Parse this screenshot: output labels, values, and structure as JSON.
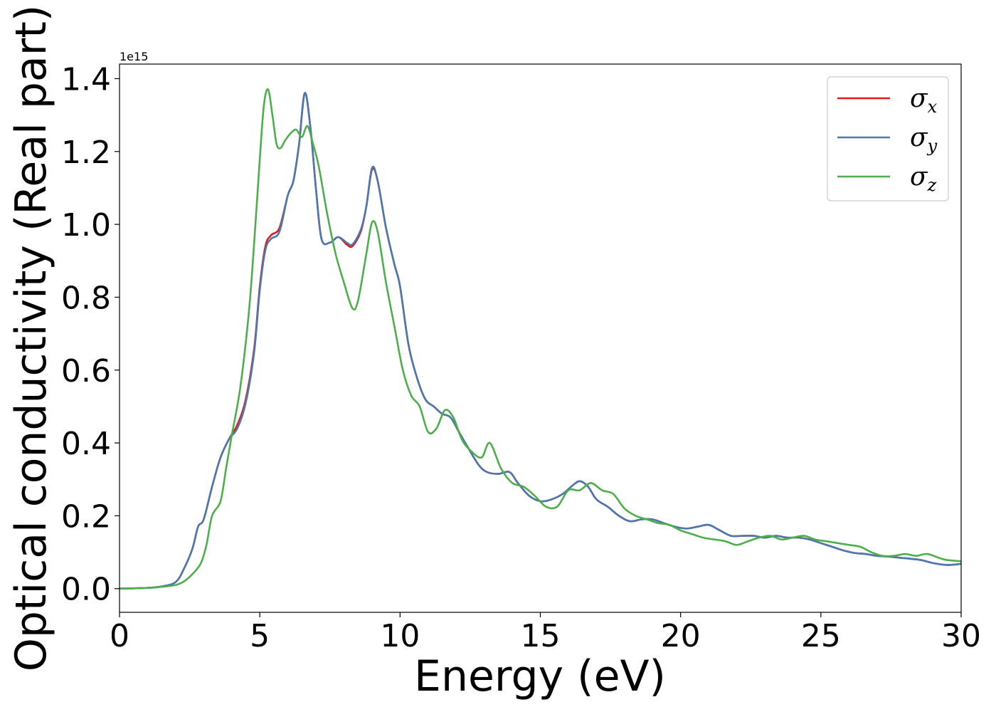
{
  "chart_data": {
    "type": "line",
    "xlabel": "Energy (eV)",
    "ylabel": "Optical conductivity (Real part)",
    "y_offset_label": "1e15",
    "xlim": [
      0,
      30
    ],
    "ylim": [
      -0.065,
      1.44
    ],
    "xticks": [
      0,
      5,
      10,
      15,
      20,
      25,
      30
    ],
    "xtick_labels": [
      "0",
      "5",
      "10",
      "15",
      "20",
      "25",
      "30"
    ],
    "yticks": [
      0.0,
      0.2,
      0.4,
      0.6,
      0.8,
      1.0,
      1.2,
      1.4
    ],
    "ytick_labels": [
      "0.0",
      "0.2",
      "0.4",
      "0.6",
      "0.8",
      "1.0",
      "1.2",
      "1.4"
    ],
    "grid": false,
    "legend_position": "top-right",
    "series": [
      {
        "name": "σx",
        "legend_symbol": "σ",
        "legend_sub": "x",
        "color": "#e41a1c",
        "x": [
          0,
          1,
          1.5,
          2,
          2.3,
          2.6,
          2.8,
          3.0,
          3.3,
          3.6,
          3.9,
          4.2,
          4.5,
          4.8,
          5.0,
          5.2,
          5.4,
          5.7,
          6.0,
          6.2,
          6.4,
          6.6,
          6.8,
          7.0,
          7.2,
          7.5,
          7.8,
          8.1,
          8.3,
          8.6,
          8.8,
          9.0,
          9.2,
          9.5,
          9.8,
          10.0,
          10.3,
          10.6,
          10.9,
          11.2,
          11.5,
          11.8,
          12.1,
          12.4,
          12.8,
          13.1,
          13.5,
          13.9,
          14.2,
          14.6,
          15.0,
          15.4,
          15.8,
          16.1,
          16.4,
          16.7,
          17.0,
          17.4,
          17.8,
          18.2,
          18.6,
          19.0,
          19.4,
          19.8,
          20.2,
          20.6,
          21.0,
          21.4,
          21.8,
          22.2,
          22.6,
          23.0,
          23.4,
          23.8,
          24.2,
          24.6,
          25.0,
          25.4,
          25.8,
          26.2,
          26.6,
          27.0,
          27.4,
          27.8,
          28.2,
          28.6,
          29.0,
          29.5,
          30.0
        ],
        "y": [
          0,
          0.002,
          0.006,
          0.018,
          0.055,
          0.11,
          0.17,
          0.19,
          0.28,
          0.36,
          0.41,
          0.45,
          0.52,
          0.66,
          0.83,
          0.94,
          0.97,
          0.99,
          1.08,
          1.12,
          1.22,
          1.36,
          1.27,
          1.1,
          0.96,
          0.95,
          0.965,
          0.945,
          0.94,
          0.98,
          1.05,
          1.15,
          1.12,
          0.99,
          0.89,
          0.83,
          0.67,
          0.58,
          0.52,
          0.5,
          0.48,
          0.47,
          0.43,
          0.39,
          0.34,
          0.32,
          0.315,
          0.32,
          0.29,
          0.255,
          0.24,
          0.245,
          0.26,
          0.28,
          0.295,
          0.28,
          0.245,
          0.225,
          0.2,
          0.185,
          0.19,
          0.19,
          0.18,
          0.17,
          0.165,
          0.17,
          0.175,
          0.16,
          0.145,
          0.145,
          0.145,
          0.14,
          0.145,
          0.14,
          0.14,
          0.135,
          0.125,
          0.115,
          0.105,
          0.098,
          0.095,
          0.09,
          0.088,
          0.085,
          0.082,
          0.078,
          0.07,
          0.065,
          0.068
        ]
      },
      {
        "name": "σy",
        "legend_symbol": "σ",
        "legend_sub": "y",
        "color": "#4a78b0",
        "x": [
          0,
          1,
          1.5,
          2,
          2.3,
          2.6,
          2.8,
          3.0,
          3.3,
          3.6,
          3.9,
          4.2,
          4.5,
          4.8,
          5.0,
          5.2,
          5.4,
          5.7,
          6.0,
          6.2,
          6.4,
          6.6,
          6.8,
          7.0,
          7.2,
          7.5,
          7.8,
          8.1,
          8.3,
          8.6,
          8.8,
          9.0,
          9.2,
          9.5,
          9.8,
          10.0,
          10.3,
          10.6,
          10.9,
          11.2,
          11.5,
          11.8,
          12.1,
          12.4,
          12.8,
          13.1,
          13.5,
          13.9,
          14.2,
          14.6,
          15.0,
          15.4,
          15.8,
          16.1,
          16.4,
          16.7,
          17.0,
          17.4,
          17.8,
          18.2,
          18.6,
          19.0,
          19.4,
          19.8,
          20.2,
          20.6,
          21.0,
          21.4,
          21.8,
          22.2,
          22.6,
          23.0,
          23.4,
          23.8,
          24.2,
          24.6,
          25.0,
          25.4,
          25.8,
          26.2,
          26.6,
          27.0,
          27.4,
          27.8,
          28.2,
          28.6,
          29.0,
          29.5,
          30.0
        ],
        "y": [
          0,
          0.002,
          0.006,
          0.018,
          0.055,
          0.11,
          0.17,
          0.19,
          0.28,
          0.36,
          0.41,
          0.44,
          0.51,
          0.65,
          0.82,
          0.93,
          0.96,
          0.98,
          1.08,
          1.12,
          1.22,
          1.36,
          1.27,
          1.1,
          0.96,
          0.95,
          0.965,
          0.95,
          0.945,
          0.985,
          1.05,
          1.155,
          1.12,
          0.99,
          0.89,
          0.83,
          0.67,
          0.58,
          0.52,
          0.5,
          0.48,
          0.47,
          0.43,
          0.39,
          0.34,
          0.32,
          0.315,
          0.32,
          0.29,
          0.255,
          0.24,
          0.245,
          0.26,
          0.28,
          0.295,
          0.28,
          0.245,
          0.225,
          0.2,
          0.185,
          0.19,
          0.19,
          0.18,
          0.17,
          0.165,
          0.17,
          0.175,
          0.16,
          0.145,
          0.145,
          0.145,
          0.14,
          0.145,
          0.14,
          0.14,
          0.135,
          0.125,
          0.115,
          0.105,
          0.098,
          0.095,
          0.09,
          0.088,
          0.085,
          0.082,
          0.078,
          0.07,
          0.065,
          0.068
        ]
      },
      {
        "name": "σz",
        "legend_symbol": "σ",
        "legend_sub": "z",
        "color": "#4daf4a",
        "x": [
          0,
          1,
          1.5,
          2,
          2.3,
          2.6,
          2.9,
          3.1,
          3.3,
          3.6,
          3.8,
          4.0,
          4.3,
          4.6,
          4.8,
          5.0,
          5.15,
          5.3,
          5.45,
          5.6,
          5.75,
          5.9,
          6.1,
          6.3,
          6.5,
          6.7,
          6.9,
          7.1,
          7.4,
          7.7,
          8.0,
          8.3,
          8.5,
          8.8,
          9.0,
          9.2,
          9.5,
          9.8,
          10.1,
          10.4,
          10.7,
          11.0,
          11.3,
          11.6,
          11.9,
          12.2,
          12.5,
          12.9,
          13.2,
          13.6,
          14.0,
          14.4,
          14.8,
          15.2,
          15.6,
          16.0,
          16.4,
          16.8,
          17.2,
          17.6,
          18.0,
          18.4,
          18.8,
          19.2,
          19.6,
          20.0,
          20.4,
          20.8,
          21.2,
          21.6,
          22.0,
          22.4,
          22.8,
          23.2,
          23.6,
          24.0,
          24.4,
          24.8,
          25.2,
          25.6,
          26.0,
          26.4,
          26.8,
          27.2,
          27.6,
          28.0,
          28.4,
          28.8,
          29.4,
          30.0
        ],
        "y": [
          0,
          0.002,
          0.005,
          0.01,
          0.02,
          0.04,
          0.07,
          0.12,
          0.2,
          0.24,
          0.33,
          0.42,
          0.55,
          0.75,
          0.95,
          1.18,
          1.33,
          1.37,
          1.3,
          1.22,
          1.21,
          1.23,
          1.25,
          1.26,
          1.24,
          1.27,
          1.22,
          1.16,
          1.03,
          0.92,
          0.84,
          0.77,
          0.79,
          0.92,
          1.005,
          0.98,
          0.84,
          0.72,
          0.6,
          0.53,
          0.5,
          0.43,
          0.44,
          0.49,
          0.47,
          0.41,
          0.38,
          0.36,
          0.4,
          0.33,
          0.29,
          0.28,
          0.255,
          0.225,
          0.225,
          0.27,
          0.27,
          0.29,
          0.27,
          0.26,
          0.22,
          0.2,
          0.19,
          0.18,
          0.175,
          0.16,
          0.15,
          0.14,
          0.135,
          0.13,
          0.12,
          0.13,
          0.14,
          0.145,
          0.135,
          0.14,
          0.145,
          0.135,
          0.13,
          0.125,
          0.12,
          0.115,
          0.1,
          0.09,
          0.09,
          0.095,
          0.09,
          0.095,
          0.08,
          0.075
        ]
      }
    ]
  }
}
